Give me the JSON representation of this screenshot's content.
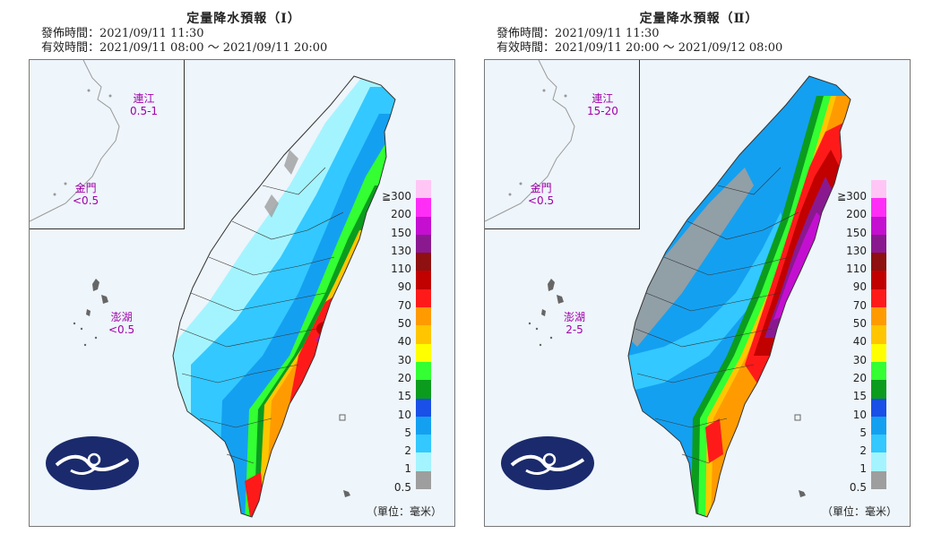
{
  "panels": [
    {
      "title": "定量降水預報（Ⅰ）",
      "issue_time": "發佈時間：2021/09/11 11:30",
      "valid_time": "有效時間：2021/09/11 08:00 ～ 2021/09/11 20:00",
      "islands": {
        "matsu": {
          "name": "連江",
          "value": "0.5-1"
        },
        "kinmen": {
          "name": "金門",
          "value": "<0.5"
        },
        "penghu": {
          "name": "澎湖",
          "value": "<0.5"
        }
      },
      "unit_label": "（單位：毫米）"
    },
    {
      "title": "定量降水預報（Ⅱ）",
      "issue_time": "發佈時間：2021/09/11 11:30",
      "valid_time": "有效時間：2021/09/11 20:00 ～ 2021/09/12 08:00",
      "islands": {
        "matsu": {
          "name": "連江",
          "value": "15-20"
        },
        "kinmen": {
          "name": "金門",
          "value": "<0.5"
        },
        "penghu": {
          "name": "澎湖",
          "value": "2-5"
        }
      },
      "unit_label": "（單位：毫米）"
    }
  ],
  "legend": {
    "labels": [
      "≧300",
      "200",
      "150",
      "130",
      "110",
      "90",
      "70",
      "50",
      "40",
      "30",
      "20",
      "15",
      "10",
      "5",
      "2",
      "1",
      "0.5"
    ],
    "colors": [
      "#ffc6f5",
      "#ff2ef6",
      "#c40fd1",
      "#8a1990",
      "#8e1010",
      "#c10000",
      "#ff1a1a",
      "#ff9b00",
      "#ffc600",
      "#ffff00",
      "#33ff33",
      "#0b9c1e",
      "#1a4fe8",
      "#14a0f0",
      "#33c8ff",
      "#a4f4ff",
      "#9e9e9e"
    ]
  },
  "colors": {
    "label_purple": "#a000a8",
    "sea": "#eef5fb",
    "logo": "#1a2a6c"
  }
}
